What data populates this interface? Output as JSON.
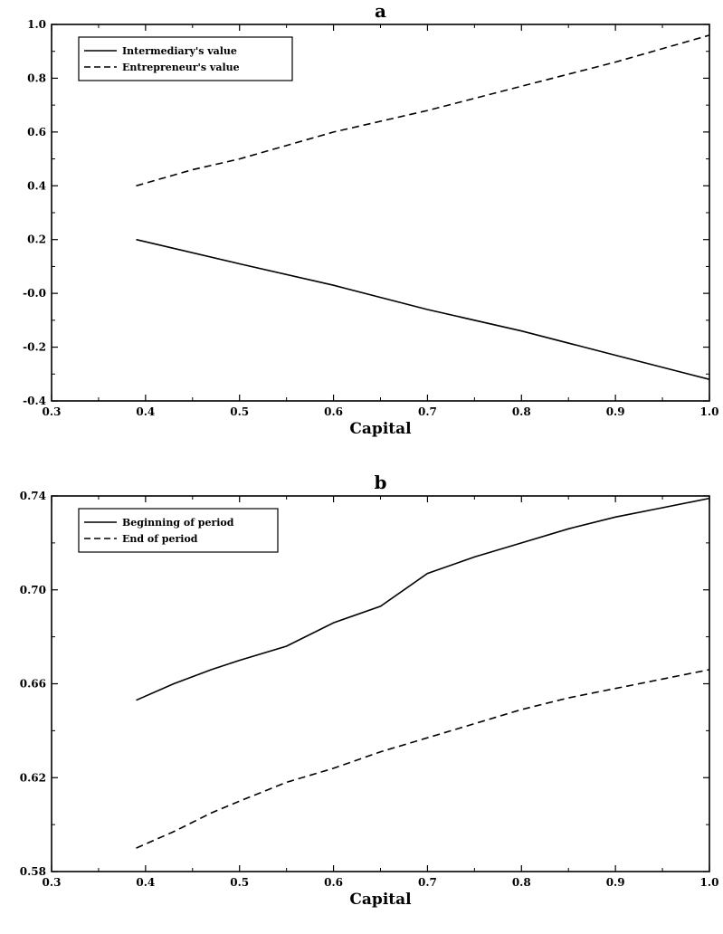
{
  "chart_data": [
    {
      "type": "line",
      "title": "a",
      "xlabel": "Capital",
      "ylabel": "",
      "xlim": [
        0.3,
        1.0
      ],
      "ylim": [
        -0.4,
        1.0
      ],
      "x_ticks": [
        0.3,
        0.4,
        0.5,
        0.6,
        0.7,
        0.8,
        0.9,
        1.0
      ],
      "x_tick_labels": [
        "0.3",
        "0.4",
        "0.5",
        "0.6",
        "0.7",
        "0.8",
        "0.9",
        "1.0"
      ],
      "y_ticks": [
        -0.4,
        -0.2,
        0.0,
        0.2,
        0.4,
        0.6,
        0.8,
        1.0
      ],
      "y_tick_labels": [
        "-0.4",
        "-0.2",
        "-0.0",
        "0.2",
        "0.4",
        "0.6",
        "0.8",
        "1.0"
      ],
      "grid": false,
      "legend_position": "top-left",
      "series": [
        {
          "name": "Intermediary's value",
          "style": "solid",
          "color": "#000000",
          "x": [
            0.39,
            0.5,
            0.6,
            0.7,
            0.8,
            0.9,
            1.0
          ],
          "y": [
            0.2,
            0.11,
            0.03,
            -0.06,
            -0.14,
            -0.23,
            -0.32
          ]
        },
        {
          "name": "Entrepreneur's value",
          "style": "dashed",
          "color": "#000000",
          "x": [
            0.39,
            0.45,
            0.5,
            0.6,
            0.7,
            0.8,
            0.9,
            1.0
          ],
          "y": [
            0.4,
            0.46,
            0.5,
            0.6,
            0.68,
            0.77,
            0.86,
            0.96
          ]
        }
      ]
    },
    {
      "type": "line",
      "title": "b",
      "xlabel": "Capital",
      "ylabel": "",
      "xlim": [
        0.3,
        1.0
      ],
      "ylim": [
        0.58,
        0.74
      ],
      "x_ticks": [
        0.3,
        0.4,
        0.5,
        0.6,
        0.7,
        0.8,
        0.9,
        1.0
      ],
      "x_tick_labels": [
        "0.3",
        "0.4",
        "0.5",
        "0.6",
        "0.7",
        "0.8",
        "0.9",
        "1.0"
      ],
      "y_ticks": [
        0.58,
        0.62,
        0.66,
        0.7,
        0.74
      ],
      "y_tick_labels": [
        "0.58",
        "0.62",
        "0.66",
        "0.70",
        "0.74"
      ],
      "grid": false,
      "legend_position": "top-left",
      "series": [
        {
          "name": "Beginning of period",
          "style": "solid",
          "color": "#000000",
          "x": [
            0.39,
            0.43,
            0.47,
            0.5,
            0.55,
            0.6,
            0.65,
            0.7,
            0.75,
            0.8,
            0.85,
            0.9,
            0.95,
            1.0
          ],
          "y": [
            0.653,
            0.66,
            0.666,
            0.67,
            0.676,
            0.686,
            0.693,
            0.707,
            0.714,
            0.72,
            0.726,
            0.731,
            0.735,
            0.739
          ]
        },
        {
          "name": "End of period",
          "style": "dashed",
          "color": "#000000",
          "x": [
            0.39,
            0.43,
            0.47,
            0.5,
            0.55,
            0.6,
            0.65,
            0.7,
            0.75,
            0.8,
            0.85,
            0.9,
            0.95,
            1.0
          ],
          "y": [
            0.59,
            0.597,
            0.605,
            0.61,
            0.618,
            0.624,
            0.631,
            0.637,
            0.643,
            0.649,
            0.654,
            0.658,
            0.662,
            0.666
          ]
        }
      ]
    }
  ]
}
